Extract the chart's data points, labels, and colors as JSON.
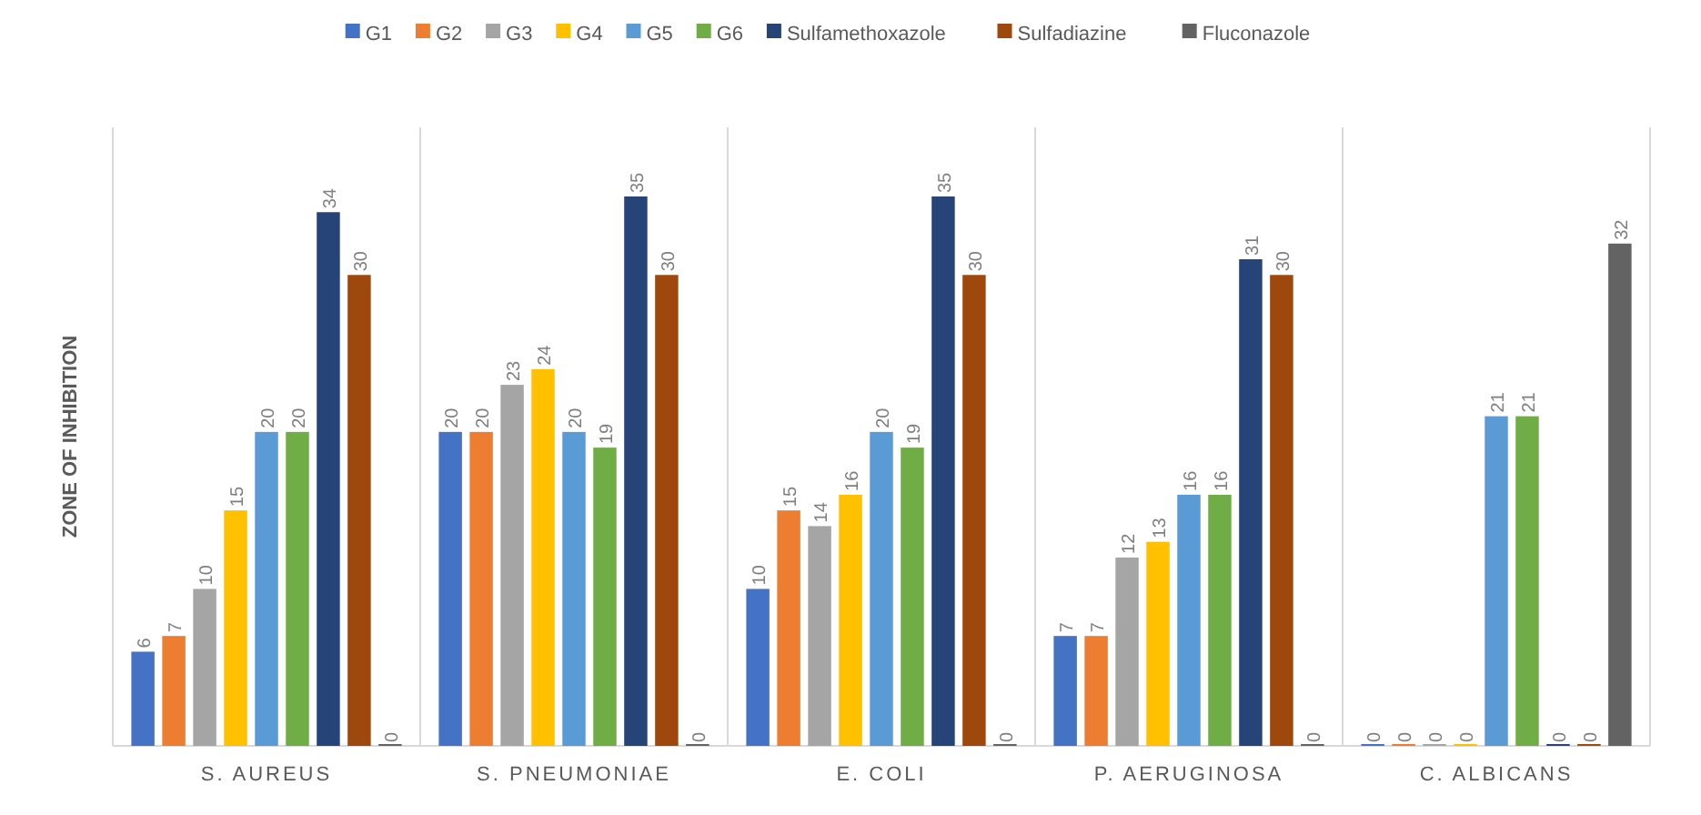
{
  "chart_data": {
    "type": "bar",
    "ylabel": "ZONE OF INHIBITION",
    "categories": [
      "S. AUREUS",
      "S. PNEUMONIAE",
      "E. COLI",
      "P. AERUGINOSA",
      "C. ALBICANS"
    ],
    "series": [
      {
        "name": "G1",
        "color": "#4472c4",
        "values": [
          6,
          20,
          10,
          7,
          0
        ]
      },
      {
        "name": "G2",
        "color": "#ed7d31",
        "values": [
          7,
          20,
          15,
          7,
          0
        ]
      },
      {
        "name": "G3",
        "color": "#a5a5a5",
        "values": [
          10,
          23,
          14,
          12,
          0
        ]
      },
      {
        "name": "G4",
        "color": "#ffc000",
        "values": [
          15,
          24,
          16,
          13,
          0
        ]
      },
      {
        "name": "G5",
        "color": "#5b9bd5",
        "values": [
          20,
          20,
          20,
          16,
          21
        ]
      },
      {
        "name": "G6",
        "color": "#70ad47",
        "values": [
          20,
          19,
          19,
          16,
          21
        ]
      },
      {
        "name": "Sulfamethoxazole",
        "color": "#264478",
        "values": [
          34,
          35,
          35,
          31,
          0
        ]
      },
      {
        "name": "Sulfadiazine",
        "color": "#9e480e",
        "values": [
          30,
          30,
          30,
          30,
          0
        ]
      },
      {
        "name": "Fluconazole",
        "color": "#636363",
        "values": [
          0,
          0,
          0,
          0,
          32
        ]
      }
    ],
    "data_labels": true,
    "grid": "x",
    "legend": "top"
  }
}
